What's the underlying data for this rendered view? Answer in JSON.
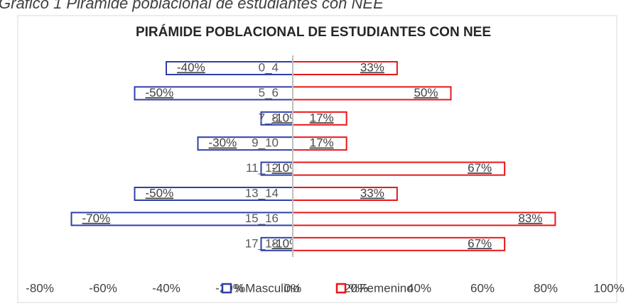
{
  "chart_data": {
    "type": "pyramid",
    "caption": "Gráfico 1 Pirámide poblacional de estudiantes con NEE",
    "title": "PIRÁMIDE POBLACIONAL DE ESTUDIANTES CON  NEE",
    "categories": [
      "0_4",
      "5_6",
      "7_8",
      "9_10",
      "11_12",
      "13_14",
      "15_16",
      "17_18"
    ],
    "series": [
      {
        "name": "%Masculino",
        "color": "#2f3fa8",
        "values": [
          -40,
          -50,
          -10,
          -30,
          -10,
          -50,
          -70,
          -10
        ],
        "value_labels": [
          "-40%",
          "-50%",
          "-10%",
          "-30%",
          "-10%",
          "-50%",
          "-70%",
          "-10%"
        ]
      },
      {
        "name": "%Femenino",
        "color": "#e8161b",
        "values": [
          33,
          50,
          17,
          17,
          67,
          33,
          83,
          67
        ],
        "value_labels": [
          "33%",
          "50%",
          "17%",
          "17%",
          "67%",
          "33%",
          "83%",
          "67%"
        ]
      }
    ],
    "xlim": [
      -80,
      100
    ],
    "xticks": [
      {
        "value": -80,
        "label": "-80%"
      },
      {
        "value": -60,
        "label": "-60%"
      },
      {
        "value": -40,
        "label": "-40%"
      },
      {
        "value": -20,
        "label": "-20%"
      },
      {
        "value": 0,
        "label": "0%"
      },
      {
        "value": 20,
        "label": "20%"
      },
      {
        "value": 40,
        "label": "40%"
      },
      {
        "value": 60,
        "label": "60%"
      },
      {
        "value": 80,
        "label": "80%"
      },
      {
        "value": 100,
        "label": "100%"
      }
    ],
    "legend": "bottom"
  }
}
